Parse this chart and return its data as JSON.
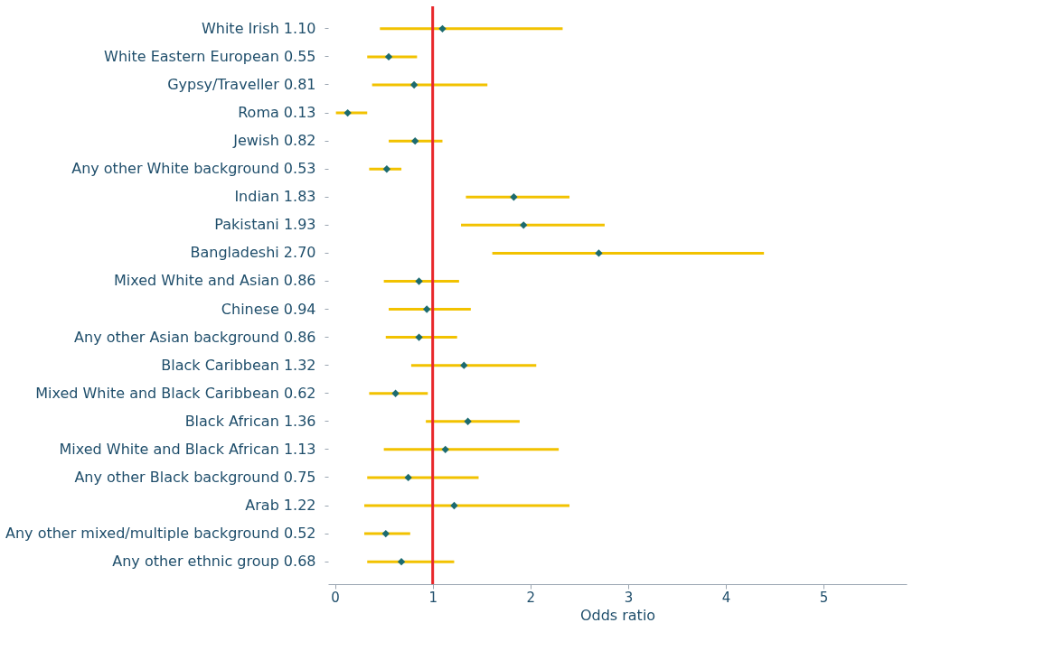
{
  "chart_data": {
    "type": "scatter",
    "xlabel": "Odds ratio",
    "categories": [
      "White Irish 1.10",
      "White Eastern European  0.55",
      "Gypsy/Traveller 0.81",
      "Roma 0.13",
      "Jewish 0.82",
      "Any other White background 0.53",
      "Indian 1.83",
      "Pakistani 1.93",
      "Bangladeshi 2.70",
      "Mixed White and Asian 0.86",
      "Chinese 0.94",
      "Any other Asian background 0.86",
      "Black Caribbean 1.32",
      "Mixed White and Black Caribbean 0.62",
      "Black African 1.36",
      "Mixed White and Black African 1.13",
      "Any other Black background 0.75",
      "Arab 1.22",
      "Any other mixed/multiple background 0.52",
      "Any other ethnic group 0.68"
    ],
    "orientation": "horizontal",
    "series": [
      {
        "color": "#1c6b70",
        "values": [
          1.1,
          0.55,
          0.81,
          0.13,
          0.82,
          0.53,
          1.83,
          1.93,
          2.7,
          0.86,
          0.94,
          0.86,
          1.32,
          0.62,
          1.36,
          1.13,
          0.75,
          1.22,
          0.52,
          0.68
        ],
        "errors": [
          [
            0.46,
            2.33
          ],
          [
            0.33,
            0.84
          ],
          [
            0.38,
            1.56
          ],
          [
            0.01,
            0.33
          ],
          [
            0.55,
            1.1
          ],
          [
            0.35,
            0.68
          ],
          [
            1.34,
            2.4
          ],
          [
            1.29,
            2.76
          ],
          [
            1.61,
            4.39
          ],
          [
            0.5,
            1.27
          ],
          [
            0.55,
            1.39
          ],
          [
            0.52,
            1.25
          ],
          [
            0.78,
            2.06
          ],
          [
            0.35,
            0.95
          ],
          [
            0.93,
            1.89
          ],
          [
            0.5,
            2.29
          ],
          [
            0.33,
            1.47
          ],
          [
            0.3,
            2.4
          ],
          [
            0.3,
            0.77
          ],
          [
            0.33,
            1.22
          ]
        ]
      }
    ],
    "xlim": [
      -0.07,
      5.85
    ],
    "xticks": [
      0,
      1,
      2,
      3,
      4,
      5
    ],
    "ref_lines": [
      {
        "axis": "x",
        "value": 1,
        "color": "#e8262a"
      }
    ],
    "marker": "diamond",
    "grid": false
  }
}
